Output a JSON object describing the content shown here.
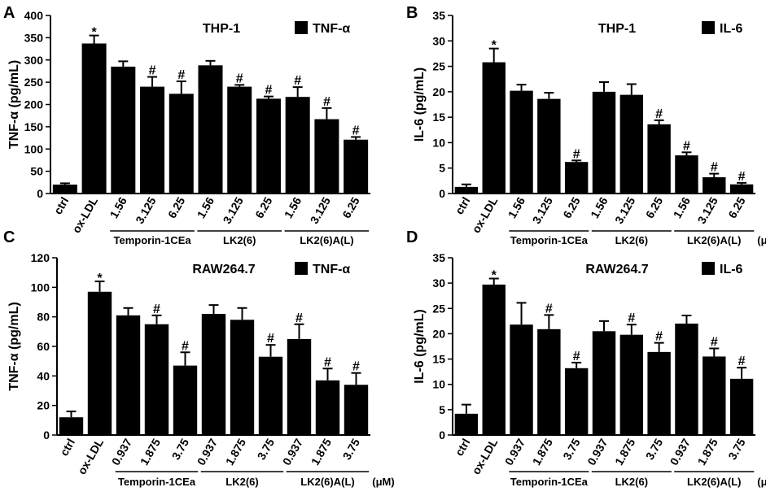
{
  "colors": {
    "bar": "#000000",
    "axis": "#000000",
    "background": "#ffffff"
  },
  "chart_data": [
    {
      "type": "bar",
      "panel": "A",
      "title": "THP-1",
      "legend": "TNF-α",
      "ylabel": "TNF-α (pg/mL)",
      "ylim": [
        0,
        400
      ],
      "yticks": [
        "0",
        "50",
        "100",
        "150",
        "200",
        "250",
        "300",
        "350",
        "400"
      ],
      "categories": [
        "ctrl",
        "ox-LDL",
        "1.56",
        "3.125",
        "6.25",
        "1.56",
        "3.125",
        "6.25",
        "1.56",
        "3.125",
        "6.25"
      ],
      "values": [
        20,
        337,
        285,
        240,
        224,
        288,
        240,
        213,
        217,
        167,
        121
      ],
      "errors": [
        3,
        18,
        12,
        22,
        28,
        10,
        4,
        5,
        22,
        25,
        6
      ],
      "marks": [
        "",
        "*",
        "",
        "#",
        "#",
        "",
        "#",
        "#",
        "#",
        "#",
        "#"
      ],
      "groups": [
        {
          "label": "Temporin-1CEa",
          "from": 2,
          "to": 4
        },
        {
          "label": "LK2(6)",
          "from": 5,
          "to": 7
        },
        {
          "label": "LK2(6)A(L)",
          "from": 8,
          "to": 10
        }
      ],
      "unit": ""
    },
    {
      "type": "bar",
      "panel": "B",
      "title": "THP-1",
      "legend": "IL-6",
      "ylabel": "IL-6 (pg/mL)",
      "ylim": [
        0,
        35
      ],
      "yticks": [
        "0",
        "5",
        "10",
        "15",
        "20",
        "25",
        "30",
        "35"
      ],
      "categories": [
        "ctrl",
        "ox-LDL",
        "1.56",
        "3.125",
        "6.25",
        "1.56",
        "3.125",
        "6.25",
        "1.56",
        "3.125",
        "6.25"
      ],
      "values": [
        1.3,
        25.8,
        20.2,
        18.6,
        6.2,
        20.0,
        19.4,
        13.6,
        7.5,
        3.2,
        1.8
      ],
      "errors": [
        0.5,
        2.7,
        1.2,
        1.2,
        0.3,
        1.9,
        2.1,
        0.8,
        0.6,
        0.7,
        0.3
      ],
      "marks": [
        "",
        "*",
        "",
        "",
        "#",
        "",
        "",
        "#",
        "#",
        "#",
        "#"
      ],
      "groups": [
        {
          "label": "Temporin-1CEa",
          "from": 2,
          "to": 4
        },
        {
          "label": "LK2(6)",
          "from": 5,
          "to": 7
        },
        {
          "label": "LK2(6)A(L)",
          "from": 8,
          "to": 10
        }
      ],
      "unit": "(μM)"
    },
    {
      "type": "bar",
      "panel": "C",
      "title": "RAW264.7",
      "legend": "TNF-α",
      "ylabel": "TNF-α (pg/mL)",
      "ylim": [
        0,
        120
      ],
      "yticks": [
        "0",
        "20",
        "40",
        "60",
        "80",
        "100",
        "120"
      ],
      "categories": [
        "ctrl",
        "ox-LDL",
        "0.937",
        "1.875",
        "3.75",
        "0.937",
        "1.875",
        "3.75",
        "0.937",
        "1.875",
        "3.75"
      ],
      "values": [
        12,
        97,
        81,
        75,
        47,
        82,
        78,
        53,
        65,
        37,
        34
      ],
      "errors": [
        4,
        7,
        5,
        6,
        9,
        6,
        8,
        8,
        10,
        8,
        8
      ],
      "marks": [
        "",
        "*",
        "",
        "#",
        "#",
        "",
        "",
        "#",
        "#",
        "#",
        "#"
      ],
      "groups": [
        {
          "label": "Temporin-1CEa",
          "from": 2,
          "to": 4
        },
        {
          "label": "LK2(6)",
          "from": 5,
          "to": 7
        },
        {
          "label": "LK2(6)A(L)",
          "from": 8,
          "to": 10
        }
      ],
      "unit": "(μM)"
    },
    {
      "type": "bar",
      "panel": "D",
      "title": "RAW264.7",
      "legend": "IL-6",
      "ylabel": "IL-6 (pg/mL)",
      "ylim": [
        0,
        35
      ],
      "yticks": [
        "0",
        "5",
        "10",
        "15",
        "20",
        "25",
        "30",
        "35"
      ],
      "categories": [
        "ctrl",
        "ox-LDL",
        "0.937",
        "1.875",
        "3.75",
        "0.937",
        "1.875",
        "3.75",
        "0.937",
        "1.875",
        "3.75"
      ],
      "values": [
        4.2,
        29.7,
        21.8,
        20.9,
        13.2,
        20.5,
        19.8,
        16.4,
        22.0,
        15.5,
        11.1
      ],
      "errors": [
        1.8,
        1.2,
        4.3,
        2.8,
        1.1,
        2.0,
        2.0,
        1.8,
        1.6,
        1.6,
        2.2
      ],
      "marks": [
        "",
        "*",
        "",
        "#",
        "#",
        "",
        "#",
        "#",
        "",
        "#",
        "#"
      ],
      "groups": [
        {
          "label": "Temporin-1CEa",
          "from": 2,
          "to": 4
        },
        {
          "label": "LK2(6)",
          "from": 5,
          "to": 7
        },
        {
          "label": "LK2(6)A(L)",
          "from": 8,
          "to": 10
        }
      ],
      "unit": "(μM)"
    }
  ]
}
